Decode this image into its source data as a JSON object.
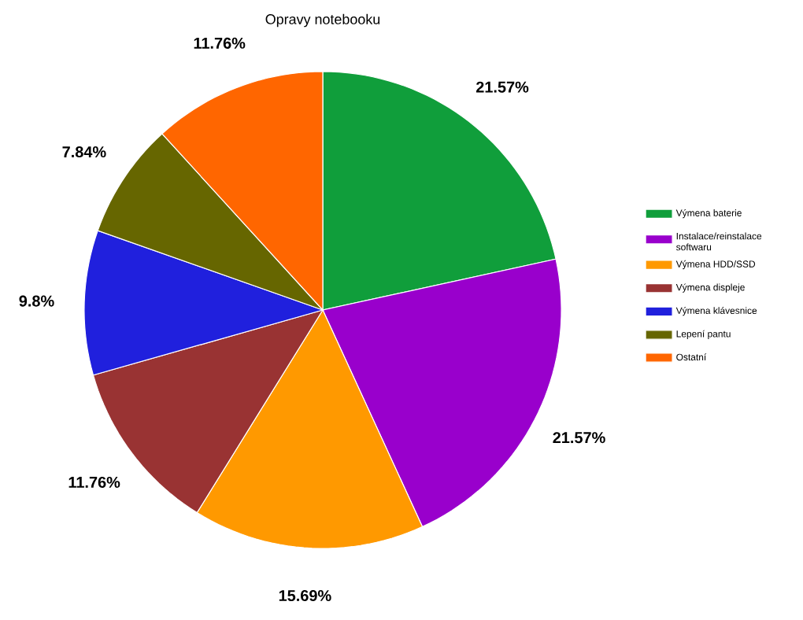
{
  "chart_data": {
    "type": "pie",
    "title": "Opravy notebooku",
    "categories": [
      "Výmena baterie",
      "Instalace/reinstalace softwaru",
      "Výmena HDD/SSD",
      "Výmena displeje",
      "Výmena klávesnice",
      "Lepení pantu",
      "Ostatní"
    ],
    "values": [
      21.57,
      21.57,
      15.69,
      11.76,
      9.8,
      7.84,
      11.76
    ],
    "value_labels": [
      "21.57%",
      "21.57%",
      "15.69%",
      "11.76%",
      "9.8%",
      "7.84%",
      "11.76%"
    ],
    "colors": [
      "#109e3b",
      "#9900cc",
      "#ff9900",
      "#993333",
      "#2020dd",
      "#666600",
      "#ff6600"
    ],
    "legend": "right"
  }
}
